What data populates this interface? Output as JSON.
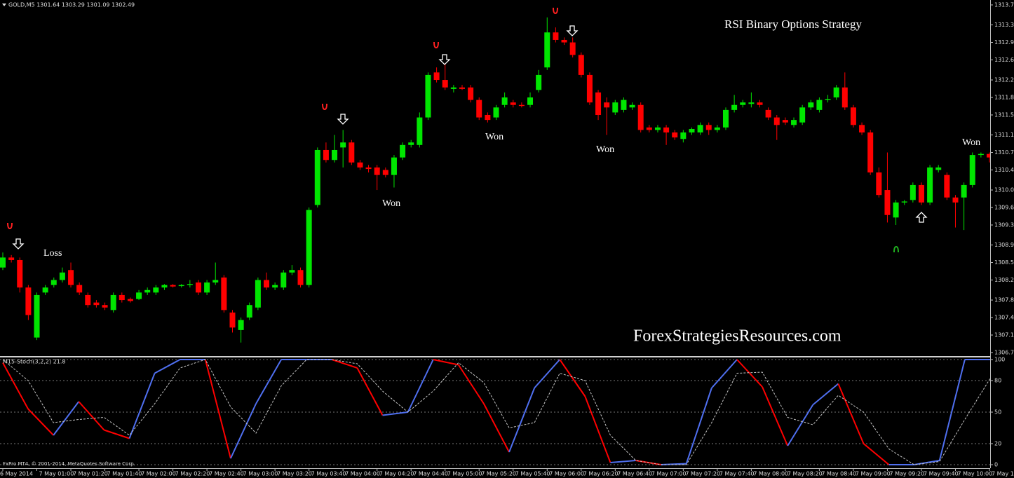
{
  "chart_data": [
    {
      "type": "candlestick",
      "header": "GOLD,M5  1301.64 1303.29 1301.09 1302.49",
      "title": "RSI Binary Options Strategy",
      "watermark": "ForexStrategiesResources.com",
      "annotations": [
        "Loss",
        "Won",
        "Won",
        "Won",
        "Won"
      ],
      "x_labels": [
        "6 May 2014",
        "7 May 01:00",
        "7 May 01:20",
        "7 May 01:40",
        "7 May 02:00",
        "7 May 02:20",
        "7 May 02:40",
        "7 May 03:00",
        "7 May 03:20",
        "7 May 03:40",
        "7 May 04:00",
        "7 May 04:20",
        "7 May 04:40",
        "7 May 05:00",
        "7 May 05:20",
        "7 May 05:40",
        "7 May 06:00",
        "7 May 06:20",
        "7 May 06:40",
        "7 May 07:00",
        "7 May 07:20",
        "7 May 07:40",
        "7 May 08:00",
        "7 May 08:20",
        "7 May 08:40",
        "7 May 09:00",
        "7 May 09:20",
        "7 May 09:40",
        "7 May 10:00",
        "7 May 10:20"
      ],
      "open": [
        1308.45,
        1308.65,
        1308.6,
        1308.05,
        1307.05,
        1307.95,
        1308.1,
        1308.2,
        1308.4,
        1308.1,
        1307.9,
        1307.75,
        1307.7,
        1307.6,
        1307.9,
        1307.82,
        1307.82,
        1307.95,
        1307.95,
        1308.05,
        1308.1,
        1308.08,
        1308.1,
        1308.15,
        1307.95,
        1308.15,
        1308.25,
        1307.55,
        1307.2,
        1307.45,
        1307.65,
        1308.2,
        1308.05,
        1308.05,
        1308.35,
        1308.4,
        1308.1,
        1309.7,
        1310.8,
        1310.6,
        1310.85,
        1310.95,
        1310.55,
        1310.45,
        1310.45,
        1310.4,
        1310.3,
        1310.65,
        1310.9,
        1310.9,
        1311.45,
        1312.35,
        1312.2,
        1312.02,
        1312.05,
        1312.05,
        1311.8,
        1311.5,
        1311.45,
        1311.7,
        1311.75,
        1311.7,
        1311.7,
        1312.0,
        1312.45,
        1313.15,
        1313.0,
        1312.95,
        1312.7,
        1312.3,
        1311.95,
        1311.75,
        1311.55,
        1311.6,
        1311.65,
        1311.7,
        1311.25,
        1311.2,
        1311.25,
        1311.15,
        1311.02,
        1311.15,
        1311.15,
        1311.3,
        1311.2,
        1311.25,
        1311.6,
        1311.7,
        1311.72,
        1311.75,
        1311.6,
        1311.45,
        1311.4,
        1311.3,
        1311.35,
        1311.65,
        1311.6,
        1311.8,
        1311.85,
        1312.05,
        1311.65,
        1311.3,
        1311.15,
        1310.35,
        1310.0,
        1309.45,
        1309.75,
        1309.8,
        1310.1,
        1309.75,
        1310.4,
        1310.3,
        1309.85,
        1309.85,
        1310.1,
        1310.7,
        1310.72
      ],
      "high": [
        1308.75,
        1308.7,
        1308.65,
        1308.1,
        1307.95,
        1308.1,
        1308.25,
        1308.45,
        1308.55,
        1308.15,
        1307.95,
        1307.8,
        1307.75,
        1307.95,
        1307.95,
        1307.85,
        1308.0,
        1308.05,
        1308.1,
        1308.12,
        1308.12,
        1308.12,
        1308.2,
        1308.2,
        1308.2,
        1308.55,
        1308.3,
        1307.6,
        1307.45,
        1307.75,
        1308.25,
        1308.35,
        1308.15,
        1308.4,
        1308.5,
        1308.45,
        1309.65,
        1310.85,
        1310.95,
        1311.1,
        1311.2,
        1311.0,
        1310.6,
        1310.5,
        1310.5,
        1310.45,
        1310.7,
        1310.95,
        1311.0,
        1311.55,
        1312.35,
        1312.45,
        1312.6,
        1312.1,
        1312.1,
        1312.1,
        1311.85,
        1311.55,
        1311.7,
        1311.95,
        1311.8,
        1311.75,
        1311.95,
        1312.4,
        1313.45,
        1313.25,
        1313.05,
        1313.05,
        1312.75,
        1312.35,
        1312.0,
        1311.85,
        1311.8,
        1311.85,
        1311.75,
        1311.75,
        1311.3,
        1311.3,
        1311.3,
        1311.2,
        1311.2,
        1311.25,
        1311.35,
        1311.35,
        1311.3,
        1311.65,
        1311.9,
        1311.8,
        1311.95,
        1311.8,
        1311.65,
        1311.5,
        1311.45,
        1311.45,
        1311.7,
        1311.8,
        1311.85,
        1311.9,
        1312.1,
        1312.35,
        1311.7,
        1311.35,
        1311.2,
        1310.45,
        1310.75,
        1309.8,
        1309.8,
        1310.15,
        1310.15,
        1310.5,
        1310.5,
        1310.35,
        1309.9,
        1310.15,
        1310.75,
        1310.75,
        1310.75
      ],
      "low": [
        1308.4,
        1308.55,
        1307.95,
        1307.4,
        1307.0,
        1307.9,
        1308.05,
        1308.15,
        1308.05,
        1307.9,
        1307.65,
        1307.65,
        1307.6,
        1307.55,
        1307.75,
        1307.75,
        1307.8,
        1307.9,
        1307.9,
        1308.0,
        1308.05,
        1308.05,
        1308.05,
        1307.9,
        1307.9,
        1308.1,
        1307.55,
        1307.15,
        1306.95,
        1307.4,
        1307.6,
        1308.0,
        1308.0,
        1308.0,
        1308.3,
        1308.05,
        1308.05,
        1309.65,
        1310.55,
        1310.55,
        1310.45,
        1310.5,
        1310.4,
        1310.35,
        1310.0,
        1310.25,
        1310.05,
        1310.6,
        1310.85,
        1310.85,
        1311.4,
        1312.15,
        1312.0,
        1311.95,
        1312.0,
        1311.75,
        1311.4,
        1311.35,
        1311.4,
        1311.65,
        1311.65,
        1311.65,
        1311.65,
        1311.95,
        1312.4,
        1312.95,
        1312.9,
        1312.65,
        1312.25,
        1311.7,
        1311.4,
        1311.1,
        1311.5,
        1311.55,
        1311.6,
        1311.15,
        1311.15,
        1311.15,
        1310.9,
        1311.0,
        1310.95,
        1311.1,
        1311.1,
        1311.1,
        1311.15,
        1311.2,
        1311.55,
        1311.65,
        1311.65,
        1311.65,
        1311.4,
        1311.0,
        1311.3,
        1311.25,
        1311.3,
        1311.6,
        1311.55,
        1311.75,
        1311.8,
        1311.6,
        1311.25,
        1311.1,
        1310.3,
        1309.85,
        1309.35,
        1309.3,
        1309.7,
        1309.75,
        1309.7,
        1309.7,
        1310.35,
        1309.8,
        1309.25,
        1309.2,
        1310.05,
        1310.65,
        1310.55
      ],
      "close": [
        1308.65,
        1308.6,
        1308.05,
        1307.5,
        1307.9,
        1308.05,
        1308.2,
        1308.35,
        1308.1,
        1307.95,
        1307.7,
        1307.7,
        1307.65,
        1307.9,
        1307.8,
        1307.78,
        1307.95,
        1308.0,
        1308.05,
        1308.1,
        1308.07,
        1308.1,
        1308.12,
        1307.95,
        1308.15,
        1308.2,
        1307.6,
        1307.25,
        1307.4,
        1307.7,
        1308.2,
        1308.05,
        1308.1,
        1308.35,
        1308.4,
        1308.1,
        1309.6,
        1310.8,
        1310.6,
        1310.8,
        1310.95,
        1310.55,
        1310.45,
        1310.42,
        1310.3,
        1310.3,
        1310.65,
        1310.9,
        1310.95,
        1311.45,
        1312.3,
        1312.2,
        1312.05,
        1312.05,
        1312.02,
        1311.8,
        1311.45,
        1311.4,
        1311.65,
        1311.85,
        1311.7,
        1311.68,
        1311.85,
        1312.3,
        1313.15,
        1313.0,
        1312.95,
        1312.7,
        1312.3,
        1311.75,
        1311.5,
        1311.65,
        1311.75,
        1311.8,
        1311.7,
        1311.2,
        1311.2,
        1311.25,
        1311.15,
        1311.05,
        1311.15,
        1311.22,
        1311.3,
        1311.2,
        1311.25,
        1311.6,
        1311.7,
        1311.75,
        1311.75,
        1311.7,
        1311.45,
        1311.3,
        1311.35,
        1311.4,
        1311.65,
        1311.75,
        1311.8,
        1311.82,
        1312.05,
        1311.65,
        1311.3,
        1311.15,
        1310.35,
        1309.9,
        1309.5,
        1309.75,
        1309.77,
        1310.1,
        1309.75,
        1310.45,
        1310.45,
        1309.85,
        1309.75,
        1310.1,
        1310.7,
        1310.72,
        1310.65
      ],
      "up_color": "#00e600",
      "down_color": "#ff0000",
      "ylim": [
        1306.68,
        1313.77
      ],
      "yticks": [
        {
          "value": 1313.7,
          "label": "1313.70"
        },
        {
          "value": 1313.3,
          "label": "1313.30"
        },
        1312.95,
        {
          "value": 1312.6,
          "label": "1312.60"
        },
        {
          "value": 1312.2,
          "label": "1312.20"
        },
        1311.85,
        {
          "value": 1311.5,
          "label": "1311.50"
        },
        {
          "value": 1311.1,
          "label": "1311.10"
        },
        1310.75,
        {
          "value": 1310.4,
          "label": "1310.40"
        },
        {
          "value": 1310,
          "label": "1310.00"
        },
        1309.65,
        {
          "value": 1309.3,
          "label": "1309.30"
        },
        {
          "value": 1308.9,
          "label": "1308.90"
        },
        1308.55,
        {
          "value": 1308.2,
          "label": "1308.20"
        },
        {
          "value": 1307.8,
          "label": "1307.80"
        },
        1307.45,
        {
          "value": 1307.1,
          "label": "1307.10"
        },
        1306.75
      ]
    },
    {
      "type": "line",
      "title": "M15-Stoch(3,2,2) 21.8",
      "note": "FxPro MT4, © 2001-2014, MetaQuotes Software Corp.",
      "series": [
        {
          "color": "#4f6ff0",
          "down_color": "#ff0000",
          "values": [
            97,
            53,
            28,
            60,
            33,
            25,
            87,
            100,
            100,
            6,
            58,
            100,
            100,
            100,
            92,
            47,
            50,
            100,
            95,
            58,
            12,
            73,
            100,
            65,
            2,
            4,
            0,
            1,
            73,
            100,
            74,
            18,
            57,
            77,
            20,
            0,
            0,
            4,
            100,
            100
          ]
        },
        {
          "color": "#c8c8c8",
          "dash": true,
          "values": [
            100,
            80,
            40,
            43,
            45,
            28,
            58,
            92,
            100,
            55,
            30,
            75,
            100,
            100,
            96,
            70,
            50,
            70,
            97,
            78,
            35,
            40,
            87,
            80,
            28,
            4,
            0,
            0,
            40,
            87,
            88,
            45,
            38,
            66,
            50,
            15,
            0,
            3,
            43,
            82
          ]
        }
      ],
      "ylim": [
        0,
        100
      ],
      "yticks": [
        0,
        20,
        50,
        80,
        100
      ],
      "grid": true
    }
  ]
}
